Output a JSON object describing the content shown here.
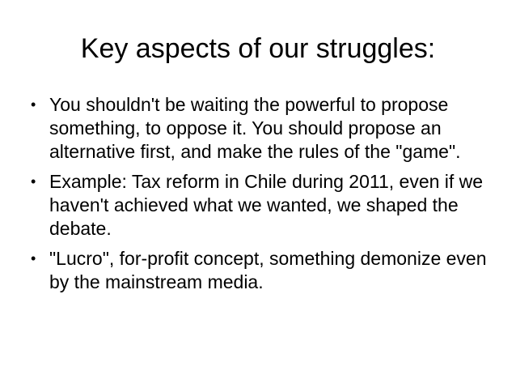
{
  "slide": {
    "title": "Key aspects of our struggles:",
    "bullet_glyph": "•",
    "bullets": [
      "You shouldn't be waiting the powerful to propose something, to oppose it. You should propose an alternative first, and make the rules of the \"game\".",
      "Example: Tax reform in Chile during 2011, even if we haven't achieved what we wanted, we shaped the debate.",
      "\"Lucro\", for-profit concept, something demonize even by the mainstream media."
    ]
  }
}
